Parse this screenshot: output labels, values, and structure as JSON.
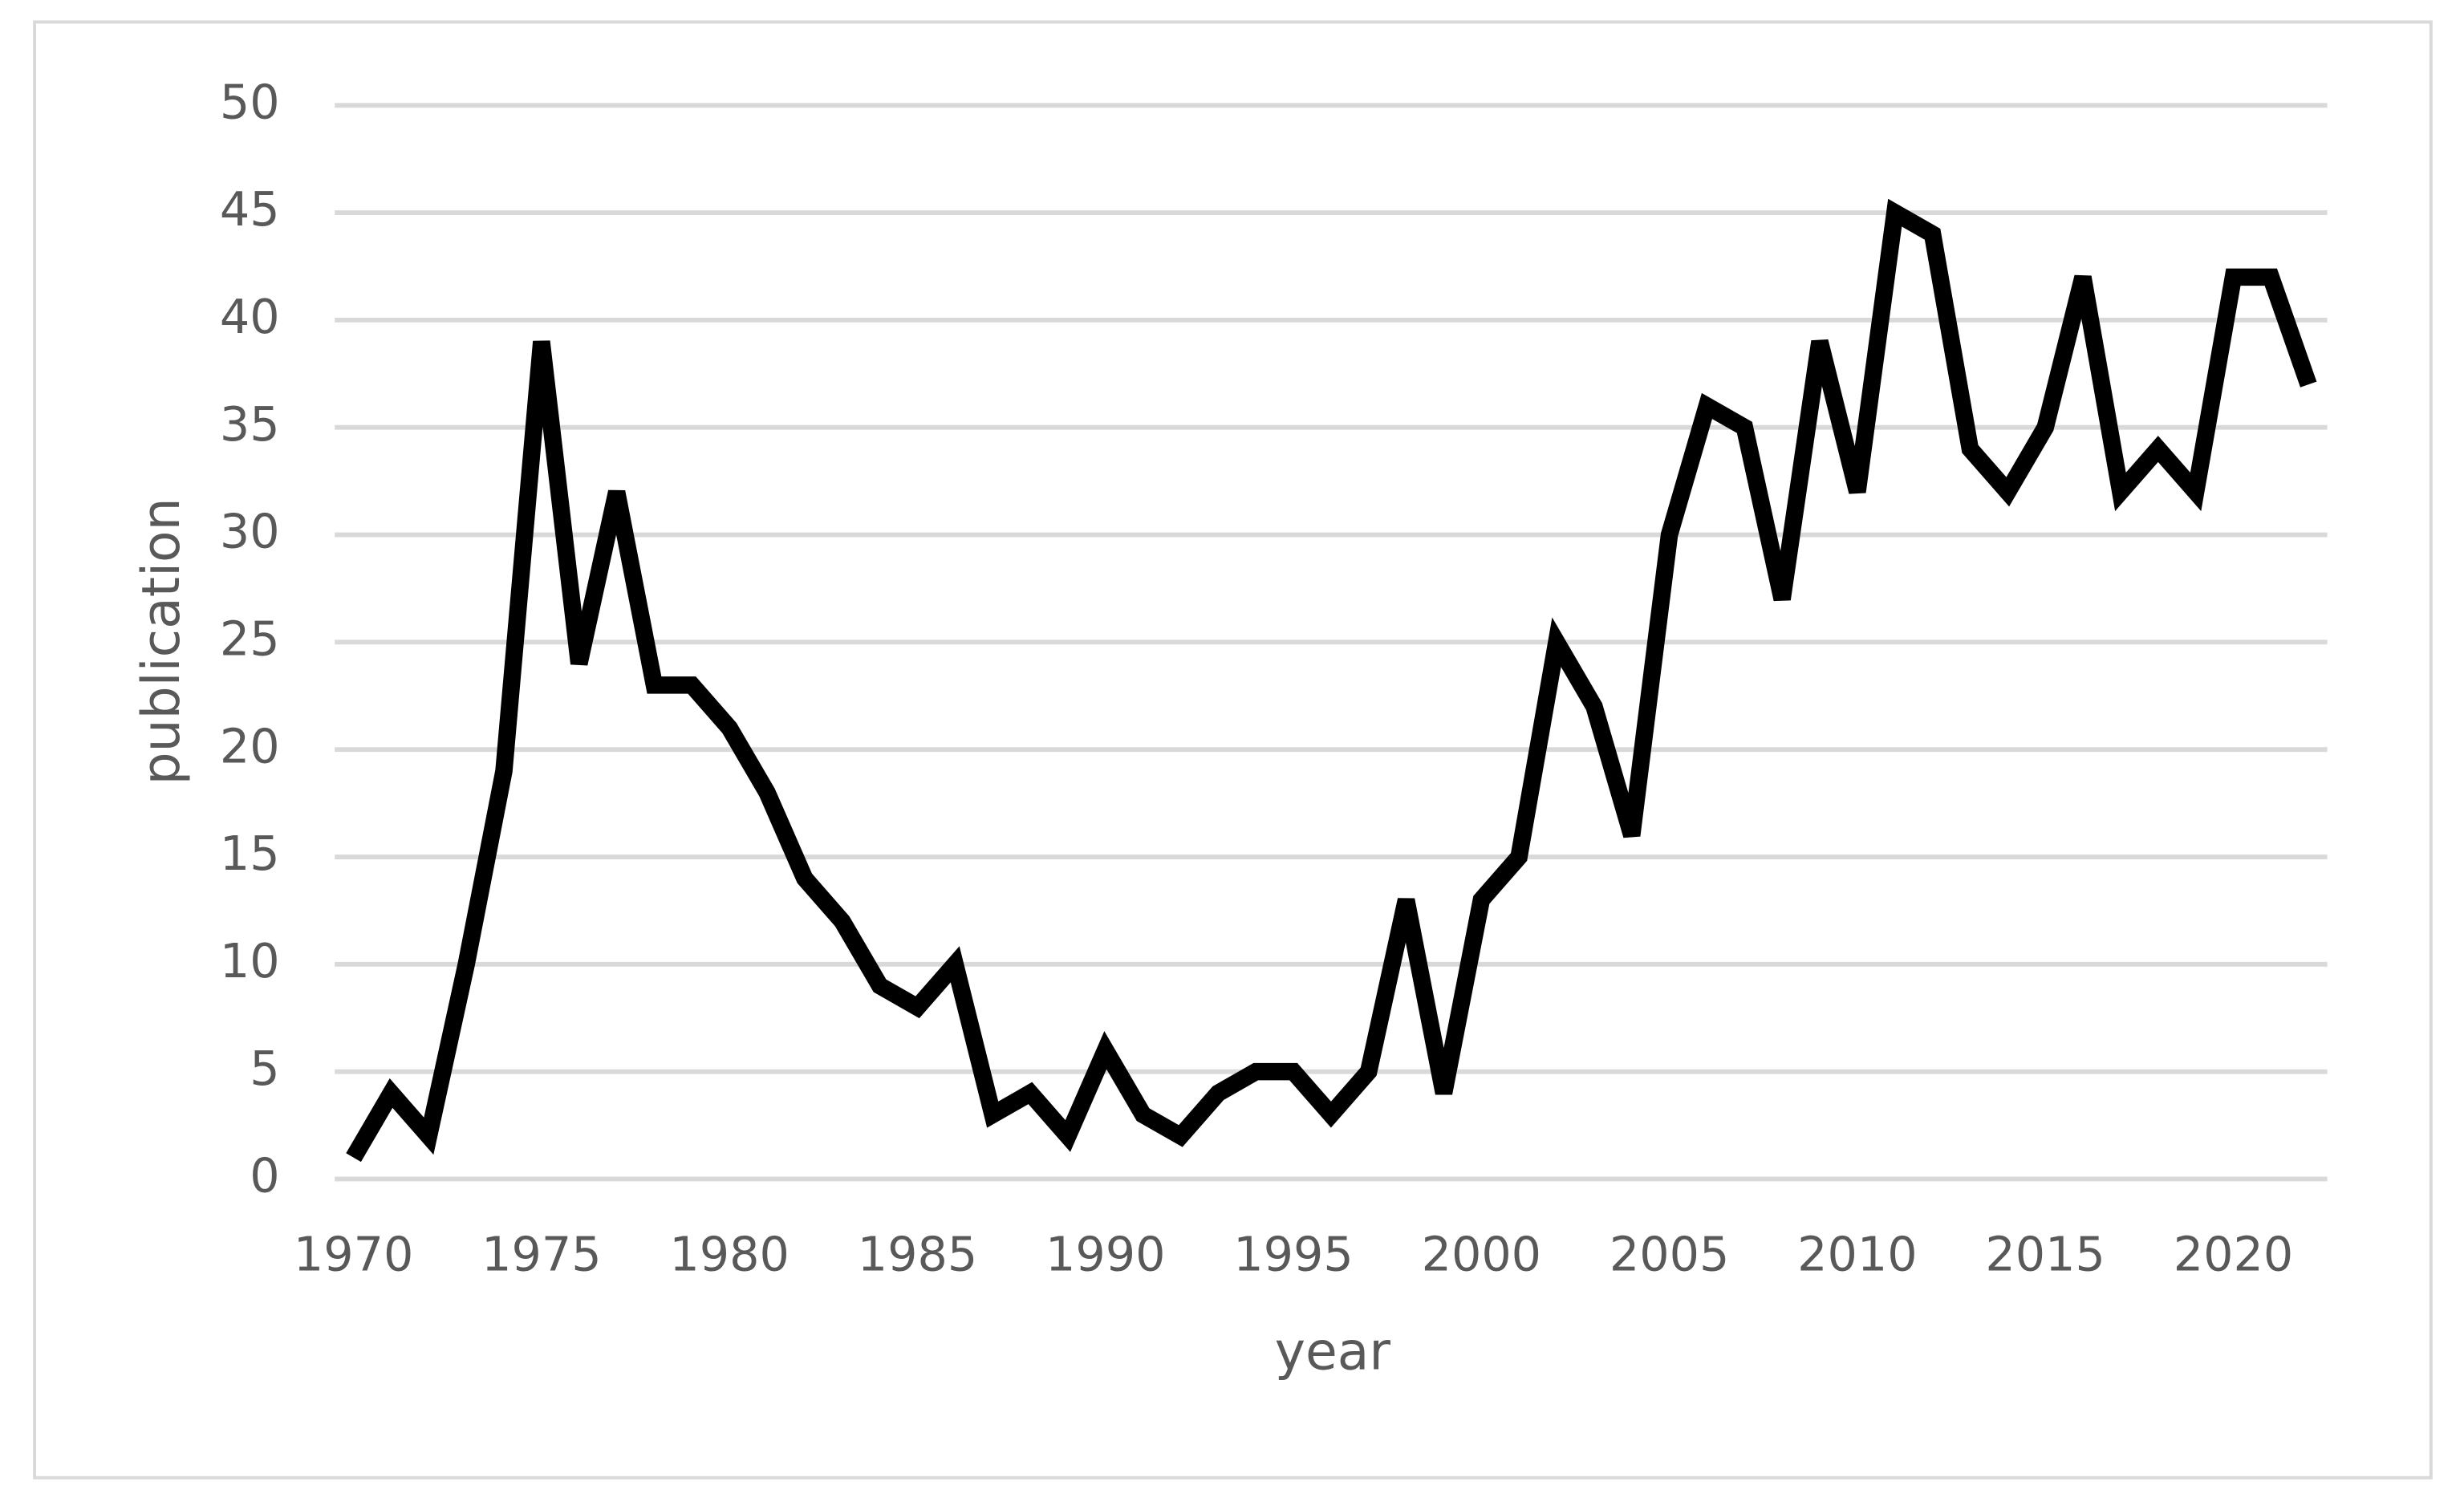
{
  "chart_data": {
    "type": "line",
    "x_label": "year",
    "y_label": "publication",
    "x": [
      1970,
      1971,
      1972,
      1973,
      1974,
      1975,
      1976,
      1977,
      1978,
      1979,
      1980,
      1981,
      1982,
      1983,
      1984,
      1985,
      1986,
      1987,
      1988,
      1989,
      1990,
      1991,
      1992,
      1993,
      1994,
      1995,
      1996,
      1997,
      1998,
      1999,
      2000,
      2001,
      2002,
      2003,
      2004,
      2005,
      2006,
      2007,
      2008,
      2009,
      2010,
      2011,
      2012,
      2013,
      2014,
      2015,
      2016,
      2017,
      2018,
      2019,
      2020,
      2021,
      2022
    ],
    "values": [
      1,
      4,
      2,
      10,
      19,
      39,
      24,
      32,
      23,
      23,
      21,
      18,
      14,
      12,
      9,
      8,
      10,
      3,
      4,
      2,
      6,
      3,
      2,
      4,
      5,
      5,
      3,
      5,
      13,
      4,
      13,
      15,
      25,
      22,
      16,
      30,
      36,
      35,
      27,
      39,
      32,
      45,
      44,
      34,
      32,
      35,
      42,
      32,
      34,
      32,
      42,
      42,
      37
    ],
    "color": "#000000",
    "xlim": [
      1969.5,
      2022.5
    ],
    "xticks": [
      1970,
      1975,
      1980,
      1985,
      1990,
      1995,
      2000,
      2005,
      2010,
      2015,
      2020
    ],
    "ylim": [
      0,
      50
    ],
    "yticks": [
      0,
      5,
      10,
      15,
      20,
      25,
      30,
      35,
      40,
      45,
      50
    ],
    "grid": true
  }
}
